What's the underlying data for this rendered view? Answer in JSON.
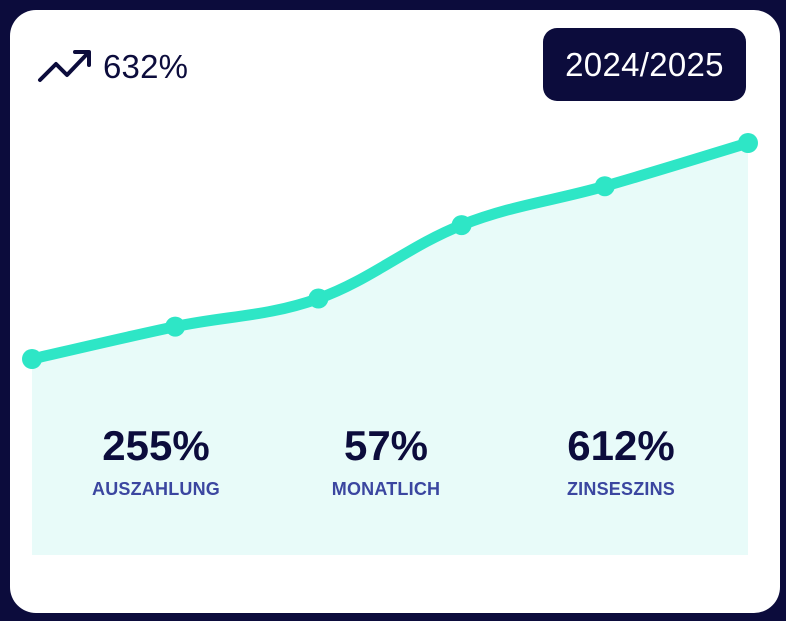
{
  "growth": {
    "value": "632%",
    "icon": "trending-up-icon"
  },
  "period": {
    "label": "2024/2025"
  },
  "colors": {
    "background": "#0c0c3c",
    "card": "#ffffff",
    "line": "#2ee6c6",
    "area": "#e8fbf9",
    "stat_value": "#0c0c3c",
    "stat_label": "#3b46a0"
  },
  "chart_data": {
    "type": "area",
    "series": [
      {
        "values": [
          0,
          15,
          28,
          62,
          80,
          100
        ]
      }
    ],
    "ylim": [
      0,
      100
    ],
    "grid": false
  },
  "stats": [
    {
      "value": "255%",
      "label": "AUSZAHLUNG"
    },
    {
      "value": "57%",
      "label": "MONATLICH"
    },
    {
      "value": "612%",
      "label": "ZINSESZINS"
    }
  ]
}
